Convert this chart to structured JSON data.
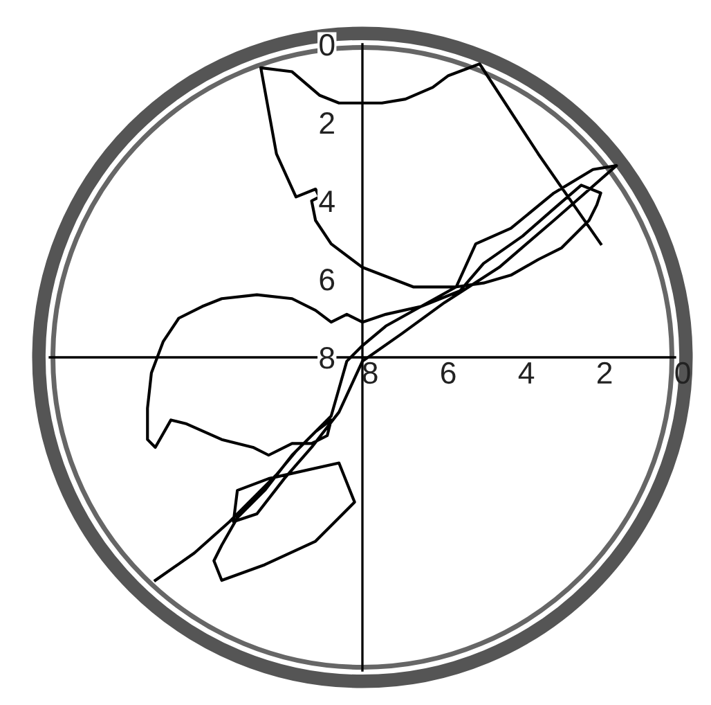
{
  "chart_data": {
    "type": "line",
    "x": [
      13.3,
      12.3,
      11.4,
      10.7,
      10.2,
      9.7,
      9.2,
      8.8,
      8.9,
      9.3,
      9.8,
      10.4,
      10.8,
      11.6,
      12.5,
      12.9,
      13.3,
      13.5,
      13.5,
      13.4,
      13.1,
      12.7,
      12.1,
      11.6,
      10.7,
      9.8,
      9.2,
      8.8,
      8.4,
      8.0,
      7.4,
      6.5,
      5.6,
      4.9,
      4.2,
      3.5,
      2.9,
      2.2,
      2.0,
      1.9,
      2.4,
      3.1,
      3.9,
      4.9,
      5.5,
      6.5,
      7.4,
      8.0,
      8.4,
      8.6,
      8.8,
      9.8,
      10.5,
      11.2,
      11.6,
      11.8,
      11.6,
      10.5,
      9.2,
      8.2,
      8.6,
      10.4,
      11.2,
      11.3,
      10.7,
      10.0,
      9.3,
      8.6,
      8.0,
      7.0,
      5.9,
      4.5,
      3.1,
      1.5,
      2.1,
      3.1,
      4.2,
      5.1,
      5.6,
      6.7,
      8.0,
      8.8,
      9.2,
      9.3,
      9.1,
      9.2,
      9.7,
      10.2,
      10.4,
      10.6,
      9.8,
      9.1,
      8.6,
      7.5,
      6.9,
      6.2,
      5.8,
      5.0,
      3.5,
      1.9
    ],
    "series": [
      {
        "color": "#000000",
        "values": [
          13.7,
          13.0,
          12.2,
          11.5,
          11.0,
          10.4,
          9.9,
          9.6,
          10.0,
          10.2,
          10.2,
          10.5,
          10.3,
          10.1,
          9.7,
          9.6,
          10.3,
          10.1,
          9.3,
          8.4,
          7.6,
          7.0,
          6.7,
          6.5,
          6.4,
          6.5,
          6.8,
          7.1,
          6.9,
          7.1,
          6.9,
          6.7,
          6.2,
          6.1,
          5.9,
          5.5,
          5.2,
          4.5,
          4.1,
          3.8,
          3.6,
          4.2,
          4.9,
          5.6,
          6.3,
          6.7,
          7.2,
          7.7,
          8.1,
          8.8,
          9.5,
          10.5,
          11.4,
          12.1,
          12.8,
          13.2,
          13.7,
          13.3,
          12.7,
          11.7,
          10.7,
          11.1,
          11.4,
          12.2,
          12.0,
          11.1,
          10.3,
          9.4,
          8.1,
          7.4,
          6.6,
          5.7,
          4.5,
          3.1,
          3.2,
          3.8,
          4.7,
          5.1,
          6.2,
          6.2,
          5.7,
          5.1,
          4.5,
          4.0,
          3.9,
          3.7,
          3.9,
          2.8,
          1.7,
          0.6,
          0.7,
          1.3,
          1.5,
          1.5,
          1.4,
          1.1,
          0.8,
          0.5,
          2.8,
          5.1
        ]
      }
    ],
    "xlim": [
      16,
      0
    ],
    "ylim": [
      16,
      0
    ],
    "xticks": [
      8,
      6,
      4,
      2,
      0
    ],
    "yticks": [
      0,
      2,
      4,
      6,
      8
    ],
    "grid": false,
    "marker": "none",
    "line_style": "solid"
  }
}
